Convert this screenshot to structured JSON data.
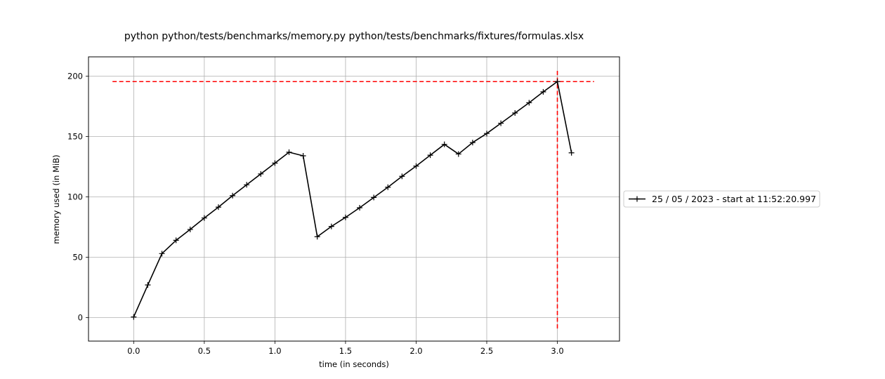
{
  "chart_data": {
    "type": "line",
    "title": "python python/tests/benchmarks/memory.py python/tests/benchmarks/fixtures/formulas.xlsx",
    "xlabel": "time (in seconds)",
    "ylabel": "memory used (in MiB)",
    "xlim": [
      -0.32,
      3.44
    ],
    "ylim": [
      -19.5,
      216
    ],
    "xticks": [
      0.0,
      0.5,
      1.0,
      1.5,
      2.0,
      2.5,
      3.0
    ],
    "xtick_labels": [
      "0.0",
      "0.5",
      "1.0",
      "1.5",
      "2.0",
      "2.5",
      "3.0"
    ],
    "yticks": [
      0,
      50,
      100,
      150,
      200
    ],
    "ytick_labels": [
      "0",
      "50",
      "100",
      "150",
      "200"
    ],
    "grid": true,
    "legend_position": "right, outside plot",
    "series": [
      {
        "name": "25 / 05 / 2023 - start at 11:52:20.997",
        "color": "#000000",
        "marker": "plus",
        "x": [
          0.0,
          0.1,
          0.2,
          0.3,
          0.4,
          0.5,
          0.6,
          0.7,
          0.8,
          0.9,
          1.0,
          1.1,
          1.2,
          1.3,
          1.4,
          1.5,
          1.6,
          1.7,
          1.8,
          1.9,
          2.0,
          2.1,
          2.2,
          2.3,
          2.4,
          2.5,
          2.6,
          2.7,
          2.8,
          2.9,
          3.0,
          3.1
        ],
        "y": [
          0.5,
          27,
          53,
          64,
          73,
          82.5,
          91.5,
          101,
          110,
          119,
          128,
          137,
          134,
          67,
          75.5,
          83,
          91,
          99.5,
          108,
          117,
          125.5,
          134.5,
          143.5,
          135.5,
          145,
          152.5,
          161,
          169.5,
          178,
          187,
          195.5,
          136.5
        ]
      }
    ],
    "annotations": {
      "peak_hline": {
        "y": 195.5,
        "x_from": -0.15,
        "x_to": 3.26,
        "color": "#ff0000",
        "style": "dashed"
      },
      "peak_vline": {
        "x": 3.0,
        "y_from": -9,
        "y_to": 205,
        "color": "#ff0000",
        "style": "dashed"
      }
    }
  }
}
